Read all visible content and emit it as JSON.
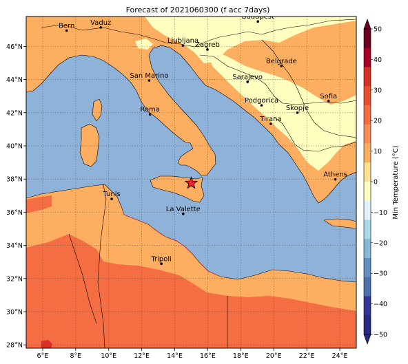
{
  "title": "Forecast of 2021060300 (f acc 7days)",
  "map": {
    "lon_range": [
      5,
      25
    ],
    "lat_range": [
      27.8,
      47.8
    ],
    "lon_ticks": [
      "6°E",
      "8°E",
      "10°E",
      "12°E",
      "14°E",
      "16°E",
      "18°E",
      "20°E",
      "22°E",
      "24°E"
    ],
    "lat_ticks": [
      "28°N",
      "30°N",
      "32°N",
      "34°N",
      "36°N",
      "38°N",
      "40°N",
      "42°N",
      "44°N",
      "46°N"
    ],
    "sea_color": "#8fb2d8",
    "marker": {
      "lon": 15.0,
      "lat": 37.75,
      "color": "#e8252c",
      "icon": "star-icon"
    },
    "cities": [
      {
        "name": "Bern",
        "lon": 7.45,
        "lat": 46.95
      },
      {
        "name": "Vaduz",
        "lon": 9.52,
        "lat": 47.14
      },
      {
        "name": "Budapest",
        "lon": 19.04,
        "lat": 47.5
      },
      {
        "name": "Ljubljana",
        "lon": 14.5,
        "lat": 46.05
      },
      {
        "name": "Zagreb",
        "lon": 15.98,
        "lat": 45.81
      },
      {
        "name": "Belgrade",
        "lon": 20.46,
        "lat": 44.82
      },
      {
        "name": "Sarajevo",
        "lon": 18.41,
        "lat": 43.86
      },
      {
        "name": "San Marino",
        "lon": 12.45,
        "lat": 43.94
      },
      {
        "name": "Podgorica",
        "lon": 19.26,
        "lat": 42.44
      },
      {
        "name": "Sofia",
        "lon": 23.32,
        "lat": 42.7
      },
      {
        "name": "Skopje",
        "lon": 21.43,
        "lat": 42.0
      },
      {
        "name": "Roma",
        "lon": 12.5,
        "lat": 41.9
      },
      {
        "name": "Tirana",
        "lon": 19.82,
        "lat": 41.33
      },
      {
        "name": "Athens",
        "lon": 23.73,
        "lat": 37.98
      },
      {
        "name": "Tunis",
        "lon": 10.18,
        "lat": 36.8
      },
      {
        "name": "La Valette",
        "lon": 14.51,
        "lat": 35.9
      },
      {
        "name": "Tripoli",
        "lon": 13.19,
        "lat": 32.89
      }
    ]
  },
  "colorbar": {
    "label": "Min Temperature (°C)",
    "ticks": [
      "50",
      "40",
      "30",
      "20",
      "10",
      "0",
      "−10",
      "−20",
      "−30",
      "−40",
      "−50"
    ],
    "levels": [
      50,
      45,
      40,
      35,
      30,
      25,
      20,
      15,
      10,
      5,
      0,
      -5,
      -10,
      -15,
      -20,
      -25,
      -30,
      -35,
      -40,
      -45,
      -50
    ],
    "colors": [
      "#6b0021",
      "#a50026",
      "#d73027",
      "#e8502f",
      "#f46d43",
      "#fc8d59",
      "#fdae61",
      "#fee090",
      "#ffffbf",
      "#e0f3f8",
      "#abd9e9",
      "#86bad6",
      "#6190c0",
      "#4a73b0",
      "#313695",
      "#262a80"
    ],
    "extend": "both"
  }
}
